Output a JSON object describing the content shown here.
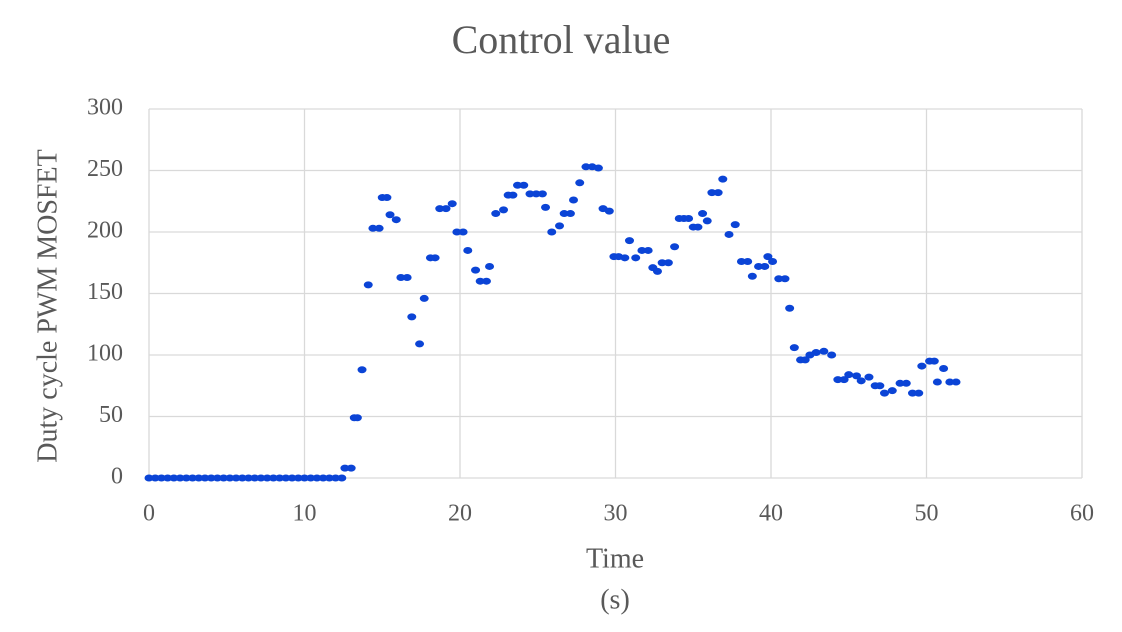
{
  "chart_data": {
    "type": "scatter",
    "title": "Control value",
    "y_label": "Duty cycle PWM MOSFET",
    "x_label_lines": [
      "Time",
      "(s)"
    ],
    "xlim": [
      0,
      60
    ],
    "xticks": [
      0,
      10,
      20,
      30,
      40,
      50,
      60
    ],
    "ylim": [
      0,
      300
    ],
    "yticks": [
      0,
      50,
      100,
      150,
      200,
      250,
      300
    ],
    "grid": true,
    "series": [
      {
        "color": "#0b44d6",
        "x": [
          0,
          0.4,
          0.8,
          1.2,
          1.6,
          2,
          2.4,
          2.8,
          3.2,
          3.6,
          4,
          4.4,
          4.8,
          5.2,
          5.6,
          6,
          6.4,
          6.8,
          7.2,
          7.6,
          8,
          8.4,
          8.8,
          9.2,
          9.6,
          10,
          10.4,
          10.8,
          11.2,
          11.6,
          12,
          12.4,
          12.6,
          13.0,
          13.2,
          13.4,
          13.7,
          14.1,
          14.4,
          14.8,
          15.0,
          15.3,
          15.5,
          15.9,
          16.2,
          16.6,
          16.9,
          17.4,
          17.7,
          18.1,
          18.4,
          18.7,
          19.1,
          19.5,
          19.8,
          20.2,
          20.5,
          21.0,
          21.3,
          21.7,
          21.9,
          22.3,
          22.8,
          23.1,
          23.4,
          23.7,
          24.1,
          24.5,
          24.9,
          25.3,
          25.5,
          25.9,
          26.4,
          26.7,
          27.1,
          27.3,
          27.7,
          28.1,
          28.5,
          28.9,
          29.2,
          29.6,
          29.9,
          30.2,
          30.6,
          30.9,
          31.3,
          31.7,
          32.1,
          32.4,
          32.7,
          33.0,
          33.4,
          33.8,
          34.1,
          34.4,
          34.7,
          35.0,
          35.3,
          35.6,
          35.9,
          36.2,
          36.6,
          36.9,
          37.3,
          37.7,
          38.1,
          38.5,
          38.8,
          39.2,
          39.6,
          39.8,
          40.1,
          40.5,
          40.9,
          41.2,
          41.5,
          41.9,
          42.2,
          42.5,
          42.9,
          43.4,
          43.9,
          44.3,
          44.7,
          45.0,
          45.5,
          45.8,
          46.3,
          46.7,
          47.0,
          47.3,
          47.8,
          48.3,
          48.7,
          49.1,
          49.5,
          49.7,
          50.2,
          50.5,
          50.7,
          51.1,
          51.5,
          51.9
        ],
        "values": [
          0,
          0,
          0,
          0,
          0,
          0,
          0,
          0,
          0,
          0,
          0,
          0,
          0,
          0,
          0,
          0,
          0,
          0,
          0,
          0,
          0,
          0,
          0,
          0,
          0,
          0,
          0,
          0,
          0,
          0,
          0,
          0,
          8,
          8,
          49,
          49,
          88,
          157,
          203,
          203,
          228,
          228,
          214,
          210,
          163,
          163,
          131,
          109,
          146,
          179,
          179,
          219,
          219,
          223,
          200,
          200,
          185,
          169,
          160,
          160,
          172,
          215,
          218,
          230,
          230,
          238,
          238,
          231,
          231,
          231,
          220,
          200,
          205,
          215,
          215,
          226,
          240,
          253,
          253,
          252,
          219,
          217,
          180,
          180,
          179,
          193,
          179,
          185,
          185,
          171,
          168,
          175,
          175,
          188,
          211,
          211,
          211,
          204,
          204,
          215,
          209,
          232,
          232,
          243,
          198,
          206,
          176,
          176,
          164,
          172,
          172,
          180,
          176,
          162,
          162,
          138,
          106,
          96,
          96,
          100,
          102,
          103,
          100,
          80,
          80,
          84,
          83,
          79,
          82,
          75,
          75,
          69,
          71,
          77,
          77,
          69,
          69,
          91,
          95,
          95,
          78,
          89,
          78,
          78
        ]
      }
    ]
  }
}
